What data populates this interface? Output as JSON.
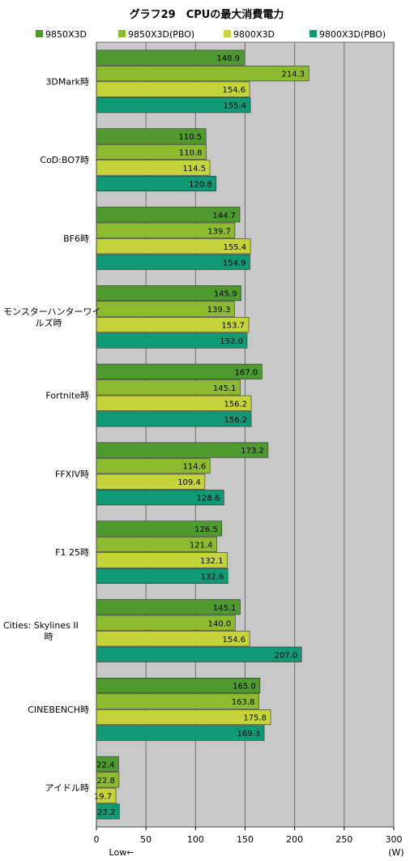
{
  "chart_data": {
    "type": "bar",
    "orientation": "horizontal",
    "title": "グラフ29　CPUの最大消費電力",
    "unit": "(W)",
    "direction_note": "Low←",
    "xlim": [
      0,
      300
    ],
    "xticks": [
      0,
      50,
      100,
      150,
      200,
      250,
      300
    ],
    "grid": true,
    "legend_position": "top",
    "categories": [
      [
        "3DMark時"
      ],
      [
        "CoD:BO7時"
      ],
      [
        "BF6時"
      ],
      [
        "モンスターハンターワイ",
        "ルズ時"
      ],
      [
        "Fortnite時"
      ],
      [
        "FFXIV時"
      ],
      [
        "F1 25時"
      ],
      [
        "Cities: Skylines II",
        "時"
      ],
      [
        "CINEBENCH時"
      ],
      [
        "アイドル時"
      ]
    ],
    "series": [
      {
        "name": "9850X3D",
        "color": "#4e9a2e",
        "values": [
          148.9,
          110.5,
          144.7,
          145.9,
          167.0,
          173.2,
          126.5,
          145.1,
          165.0,
          22.4
        ]
      },
      {
        "name": "9850X3D(PBO)",
        "color": "#8dbb2f",
        "values": [
          214.3,
          110.8,
          139.7,
          139.3,
          145.1,
          114.6,
          121.4,
          140.0,
          163.8,
          22.8
        ]
      },
      {
        "name": "9800X3D",
        "color": "#c4d43a",
        "values": [
          154.6,
          114.5,
          155.4,
          153.7,
          156.2,
          109.4,
          132.1,
          154.6,
          175.8,
          19.7
        ]
      },
      {
        "name": "9800X3D(PBO)",
        "color": "#0f9a75",
        "values": [
          155.4,
          120.8,
          154.9,
          152.0,
          156.2,
          128.6,
          132.6,
          207.0,
          169.3,
          23.2
        ]
      }
    ],
    "plot_background": "#c8c8c8",
    "gridline_color": "#6e6e6e"
  }
}
